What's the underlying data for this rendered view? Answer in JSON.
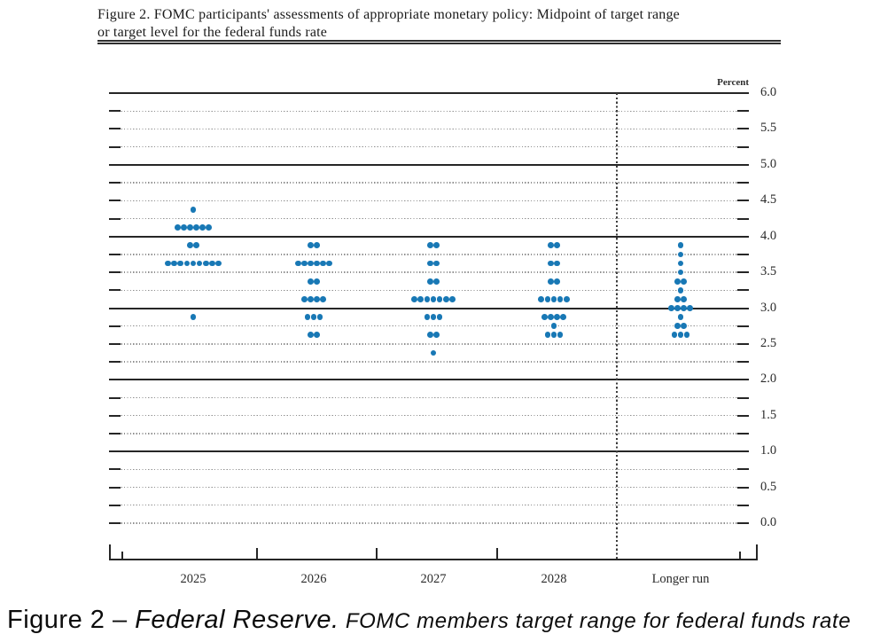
{
  "figure": {
    "title_line1": "Figure 2. FOMC participants' assessments of appropriate monetary policy: Midpoint of target range",
    "title_line2": "or target level for the federal funds rate"
  },
  "caption": {
    "figure_label": "Figure 2 – ",
    "source": "Federal Reserve.",
    "description": " FOMC members target range for federal funds rate"
  },
  "chart_data": {
    "type": "scatter",
    "subtype": "fomc-dot-plot",
    "title": "FOMC participants' assessments of appropriate monetary policy: Midpoint of target range or target level for the federal funds rate",
    "unit_label": "Percent",
    "ylabel": "Percent",
    "ylim": [
      0.0,
      6.0
    ],
    "y_label_step": 0.5,
    "y_grid_step": 0.25,
    "grid": "dotted quarters, solid integer lines",
    "legend": "none",
    "separator": "dashed vertical line before Longer run",
    "dot_color": "#1878b5",
    "categories": [
      "2025",
      "2026",
      "2027",
      "2028",
      "Longer run"
    ],
    "y_axis_labels": [
      "6.0",
      "5.5",
      "5.0",
      "4.5",
      "4.0",
      "3.5",
      "3.0",
      "2.5",
      "2.0",
      "1.5",
      "1.0",
      "0.5",
      "0.0"
    ],
    "series": [
      {
        "name": "2025",
        "dots": [
          {
            "rate": 4.375,
            "count": 1
          },
          {
            "rate": 4.125,
            "count": 6
          },
          {
            "rate": 3.875,
            "count": 2
          },
          {
            "rate": 3.625,
            "count": 9
          },
          {
            "rate": 2.875,
            "count": 1
          }
        ]
      },
      {
        "name": "2026",
        "dots": [
          {
            "rate": 3.875,
            "count": 2
          },
          {
            "rate": 3.625,
            "count": 6
          },
          {
            "rate": 3.375,
            "count": 2
          },
          {
            "rate": 3.125,
            "count": 4
          },
          {
            "rate": 2.875,
            "count": 3
          },
          {
            "rate": 2.625,
            "count": 2
          }
        ]
      },
      {
        "name": "2027",
        "dots": [
          {
            "rate": 3.875,
            "count": 2
          },
          {
            "rate": 3.625,
            "count": 2
          },
          {
            "rate": 3.375,
            "count": 2
          },
          {
            "rate": 3.125,
            "count": 7
          },
          {
            "rate": 2.875,
            "count": 3
          },
          {
            "rate": 2.625,
            "count": 2
          },
          {
            "rate": 2.375,
            "count": 1
          }
        ]
      },
      {
        "name": "2028",
        "dots": [
          {
            "rate": 3.875,
            "count": 2
          },
          {
            "rate": 3.625,
            "count": 2
          },
          {
            "rate": 3.375,
            "count": 2
          },
          {
            "rate": 3.125,
            "count": 5
          },
          {
            "rate": 2.875,
            "count": 4
          },
          {
            "rate": 2.75,
            "count": 1
          },
          {
            "rate": 2.625,
            "count": 3
          }
        ]
      },
      {
        "name": "Longer run",
        "dots": [
          {
            "rate": 3.875,
            "count": 1
          },
          {
            "rate": 3.75,
            "count": 1
          },
          {
            "rate": 3.625,
            "count": 1
          },
          {
            "rate": 3.5,
            "count": 1
          },
          {
            "rate": 3.375,
            "count": 2
          },
          {
            "rate": 3.25,
            "count": 1
          },
          {
            "rate": 3.125,
            "count": 2
          },
          {
            "rate": 3.0,
            "count": 4
          },
          {
            "rate": 2.875,
            "count": 1
          },
          {
            "rate": 2.75,
            "count": 2
          },
          {
            "rate": 2.625,
            "count": 3
          }
        ]
      }
    ]
  }
}
